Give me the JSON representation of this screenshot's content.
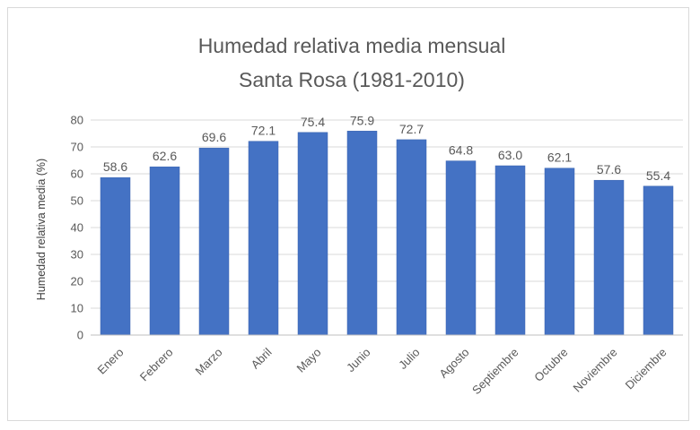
{
  "chart_data": {
    "type": "bar",
    "title": "Humedad relativa media mensual",
    "subtitle": "Santa Rosa (1981-2010)",
    "ylabel": "Humedad relativa media (%)",
    "xlabel": "",
    "categories": [
      "Enero",
      "Febrero",
      "Marzo",
      "Abril",
      "Mayo",
      "Junio",
      "Julio",
      "Agosto",
      "Septiembre",
      "Octubre",
      "Noviembre",
      "Diciembre"
    ],
    "values": [
      58.6,
      62.6,
      69.6,
      72.1,
      75.4,
      75.9,
      72.7,
      64.8,
      63.0,
      62.1,
      57.6,
      55.4
    ],
    "value_labels": [
      "58.6",
      "62.6",
      "69.6",
      "72.1",
      "75.4",
      "75.9",
      "72.7",
      "64.8",
      "63.0",
      "62.1",
      "57.6",
      "55.4"
    ],
    "ylim": [
      0,
      80
    ],
    "yticks": [
      "0",
      "10",
      "20",
      "30",
      "40",
      "50",
      "60",
      "70",
      "80"
    ],
    "grid": true,
    "legend": "none",
    "bar_color": "#4472c4"
  }
}
